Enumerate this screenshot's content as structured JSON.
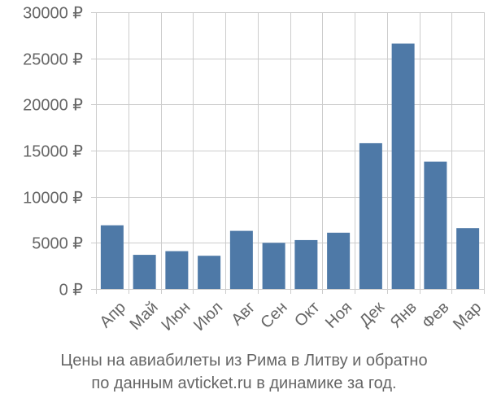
{
  "chart_data": {
    "type": "bar",
    "categories": [
      "Апр",
      "Май",
      "Июн",
      "Июл",
      "Авг",
      "Сен",
      "Окт",
      "Ноя",
      "Дек",
      "Янв",
      "Фев",
      "Мар"
    ],
    "values": [
      6900,
      3700,
      4100,
      3600,
      6300,
      5000,
      5300,
      6100,
      15800,
      26600,
      13800,
      6600
    ],
    "ylim": [
      0,
      30000
    ],
    "yticks": [
      0,
      5000,
      10000,
      15000,
      20000,
      25000,
      30000
    ],
    "ytick_labels": [
      "0 ₽",
      "5000 ₽",
      "10000 ₽",
      "15000 ₽",
      "20000 ₽",
      "25000 ₽",
      "30000 ₽"
    ],
    "grid": true,
    "bar_color": "#4e79a7",
    "grid_color": "#cccccc",
    "text_color": "#666666"
  },
  "caption": {
    "line1": "Цены на авиабилеты из Рима в Литву и обратно",
    "line2": "по данным avticket.ru в динамике за год."
  }
}
